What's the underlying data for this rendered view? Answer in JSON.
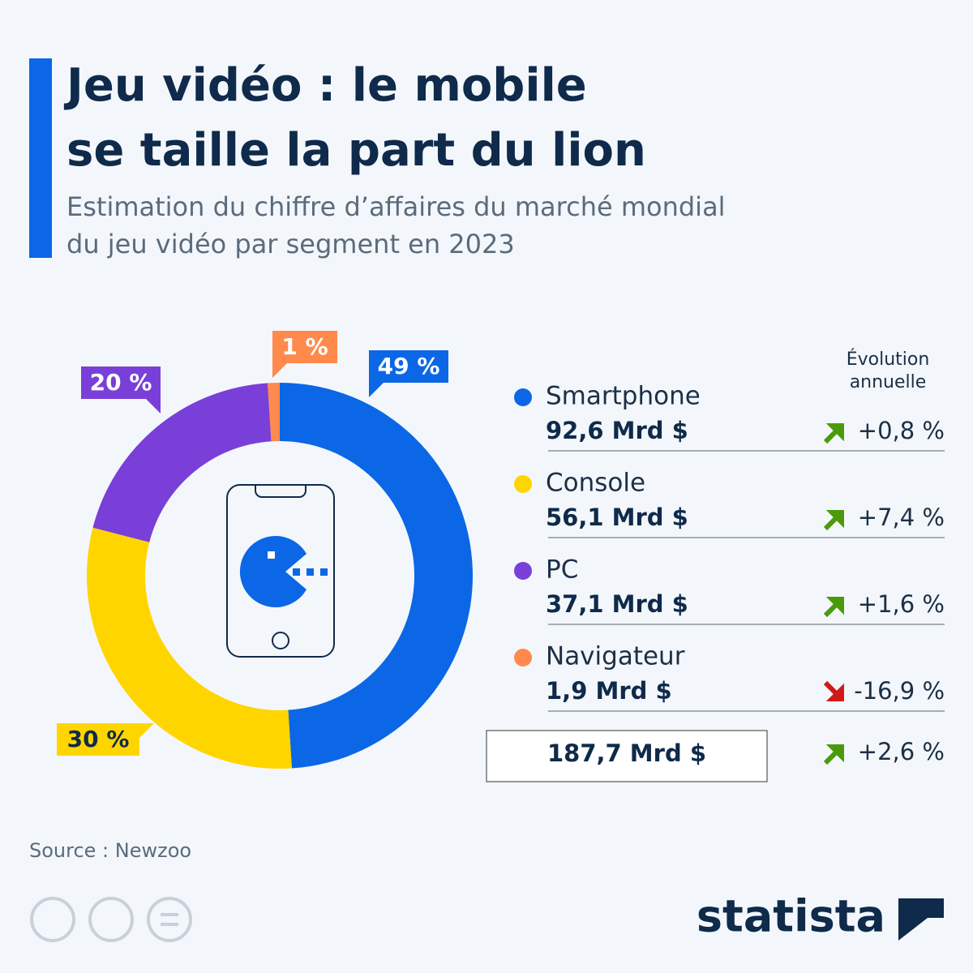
{
  "chart_data": {
    "type": "pie",
    "donut": true,
    "title": [
      "Jeu vidéo : le mobile",
      "se taille la part du lion"
    ],
    "subtitle": [
      "Estimation du chiffre d’affaires du marché mondial",
      "du jeu vidéo par segment en 2023"
    ],
    "categories": [
      "Smartphone",
      "Console",
      "PC",
      "Navigateur"
    ],
    "values": [
      49,
      30,
      20,
      1
    ],
    "value_labels": [
      "49 %",
      "30 %",
      "20 %",
      "1 %"
    ],
    "colors": [
      "#0b67e6",
      "#ffd500",
      "#7a3fd8",
      "#ff8a4c"
    ]
  },
  "table": {
    "header": "Évolution annuelle",
    "revenues": [
      "92,6 Mrd $",
      "56,1 Mrd $",
      "37,1 Mrd $",
      "1,9 Mrd $"
    ],
    "changes": [
      "+0,8 %",
      "+7,4 %",
      "+1,6 %",
      "-16,9 %"
    ],
    "total_revenue": "187,7 Mrd $",
    "total_change": "+2,6 %"
  },
  "source": "Source : Newzoo",
  "brand": "statista"
}
